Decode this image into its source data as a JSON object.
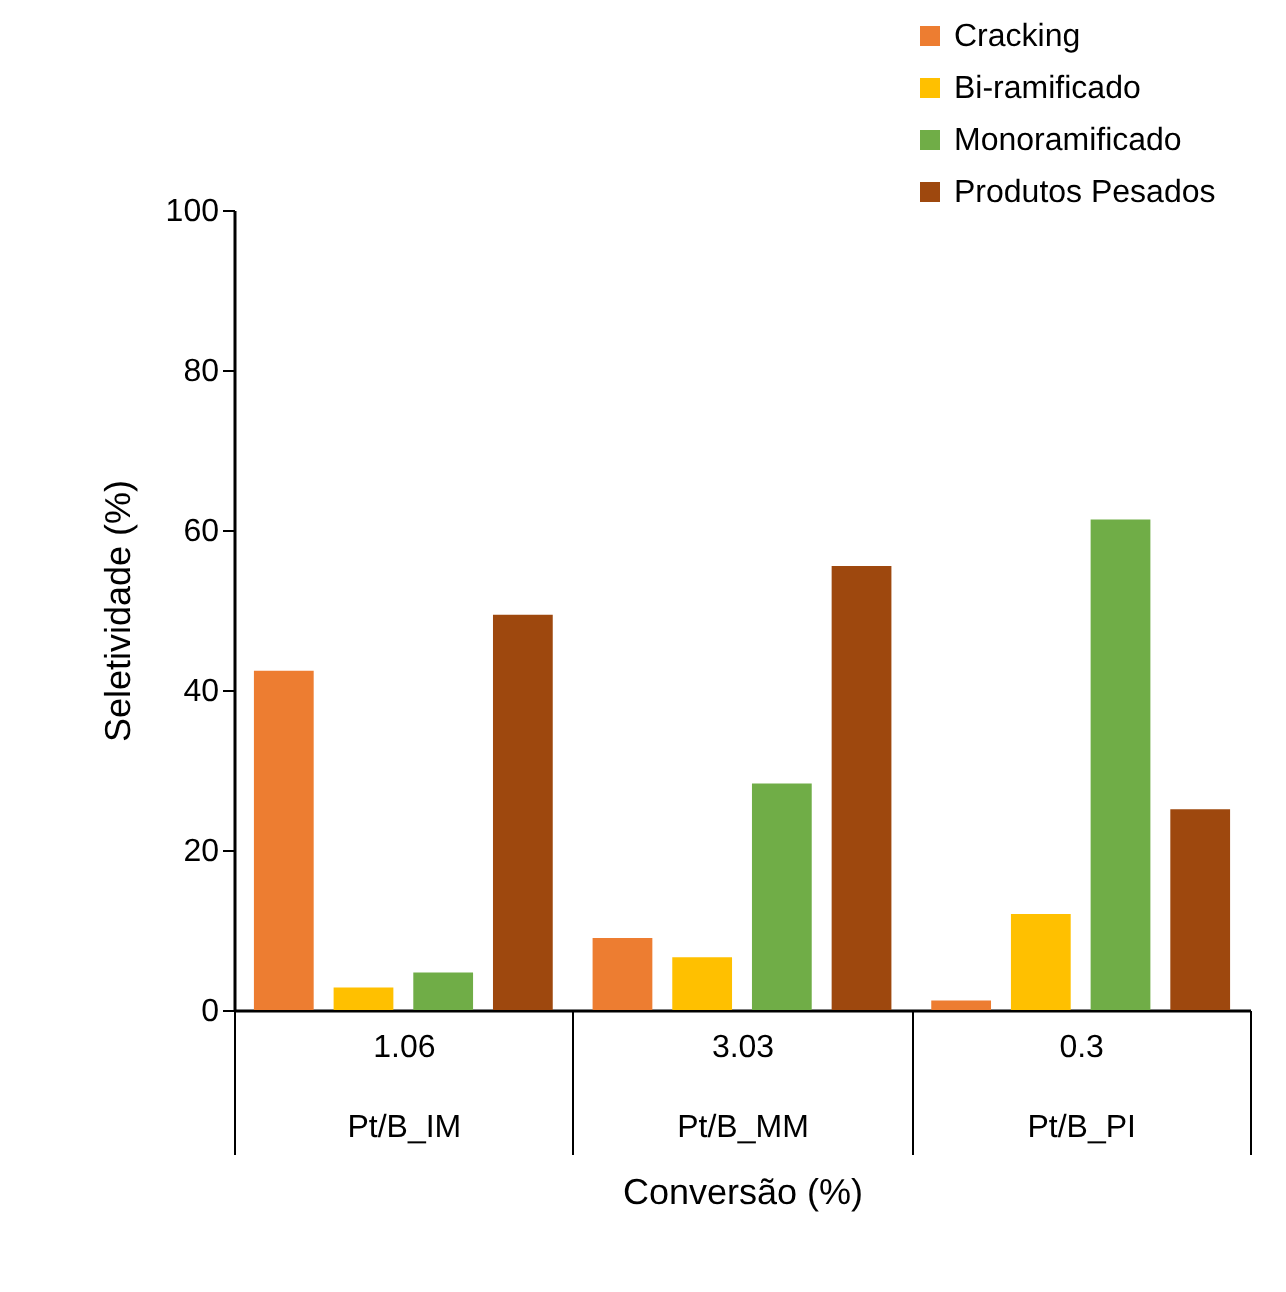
{
  "chart_data": {
    "type": "bar",
    "xlabel": "Conversão (%)",
    "ylabel": "Seletividade (%)",
    "categories": [
      "1.06\nPt/B_IM",
      "3.03\nPt/B_MM",
      "0.3\nPt/B_PI"
    ],
    "series": [
      {
        "name": "Cracking",
        "color": "#ed7d31",
        "values": [
          42.4,
          9.0,
          1.2
        ]
      },
      {
        "name": "Bi-ramificado",
        "color": "#ffc000",
        "values": [
          2.8,
          6.6,
          12.0
        ]
      },
      {
        "name": "Monoramificado",
        "color": "#70ad47",
        "values": [
          4.7,
          28.3,
          61.3
        ]
      },
      {
        "name": "Produtos Pesados",
        "color": "#9e480e",
        "values": [
          49.4,
          55.5,
          25.1
        ]
      }
    ],
    "ylim": [
      0,
      100
    ],
    "yticks": [
      0,
      20,
      40,
      60,
      80,
      100
    ],
    "grid": false,
    "legend": "top right"
  }
}
